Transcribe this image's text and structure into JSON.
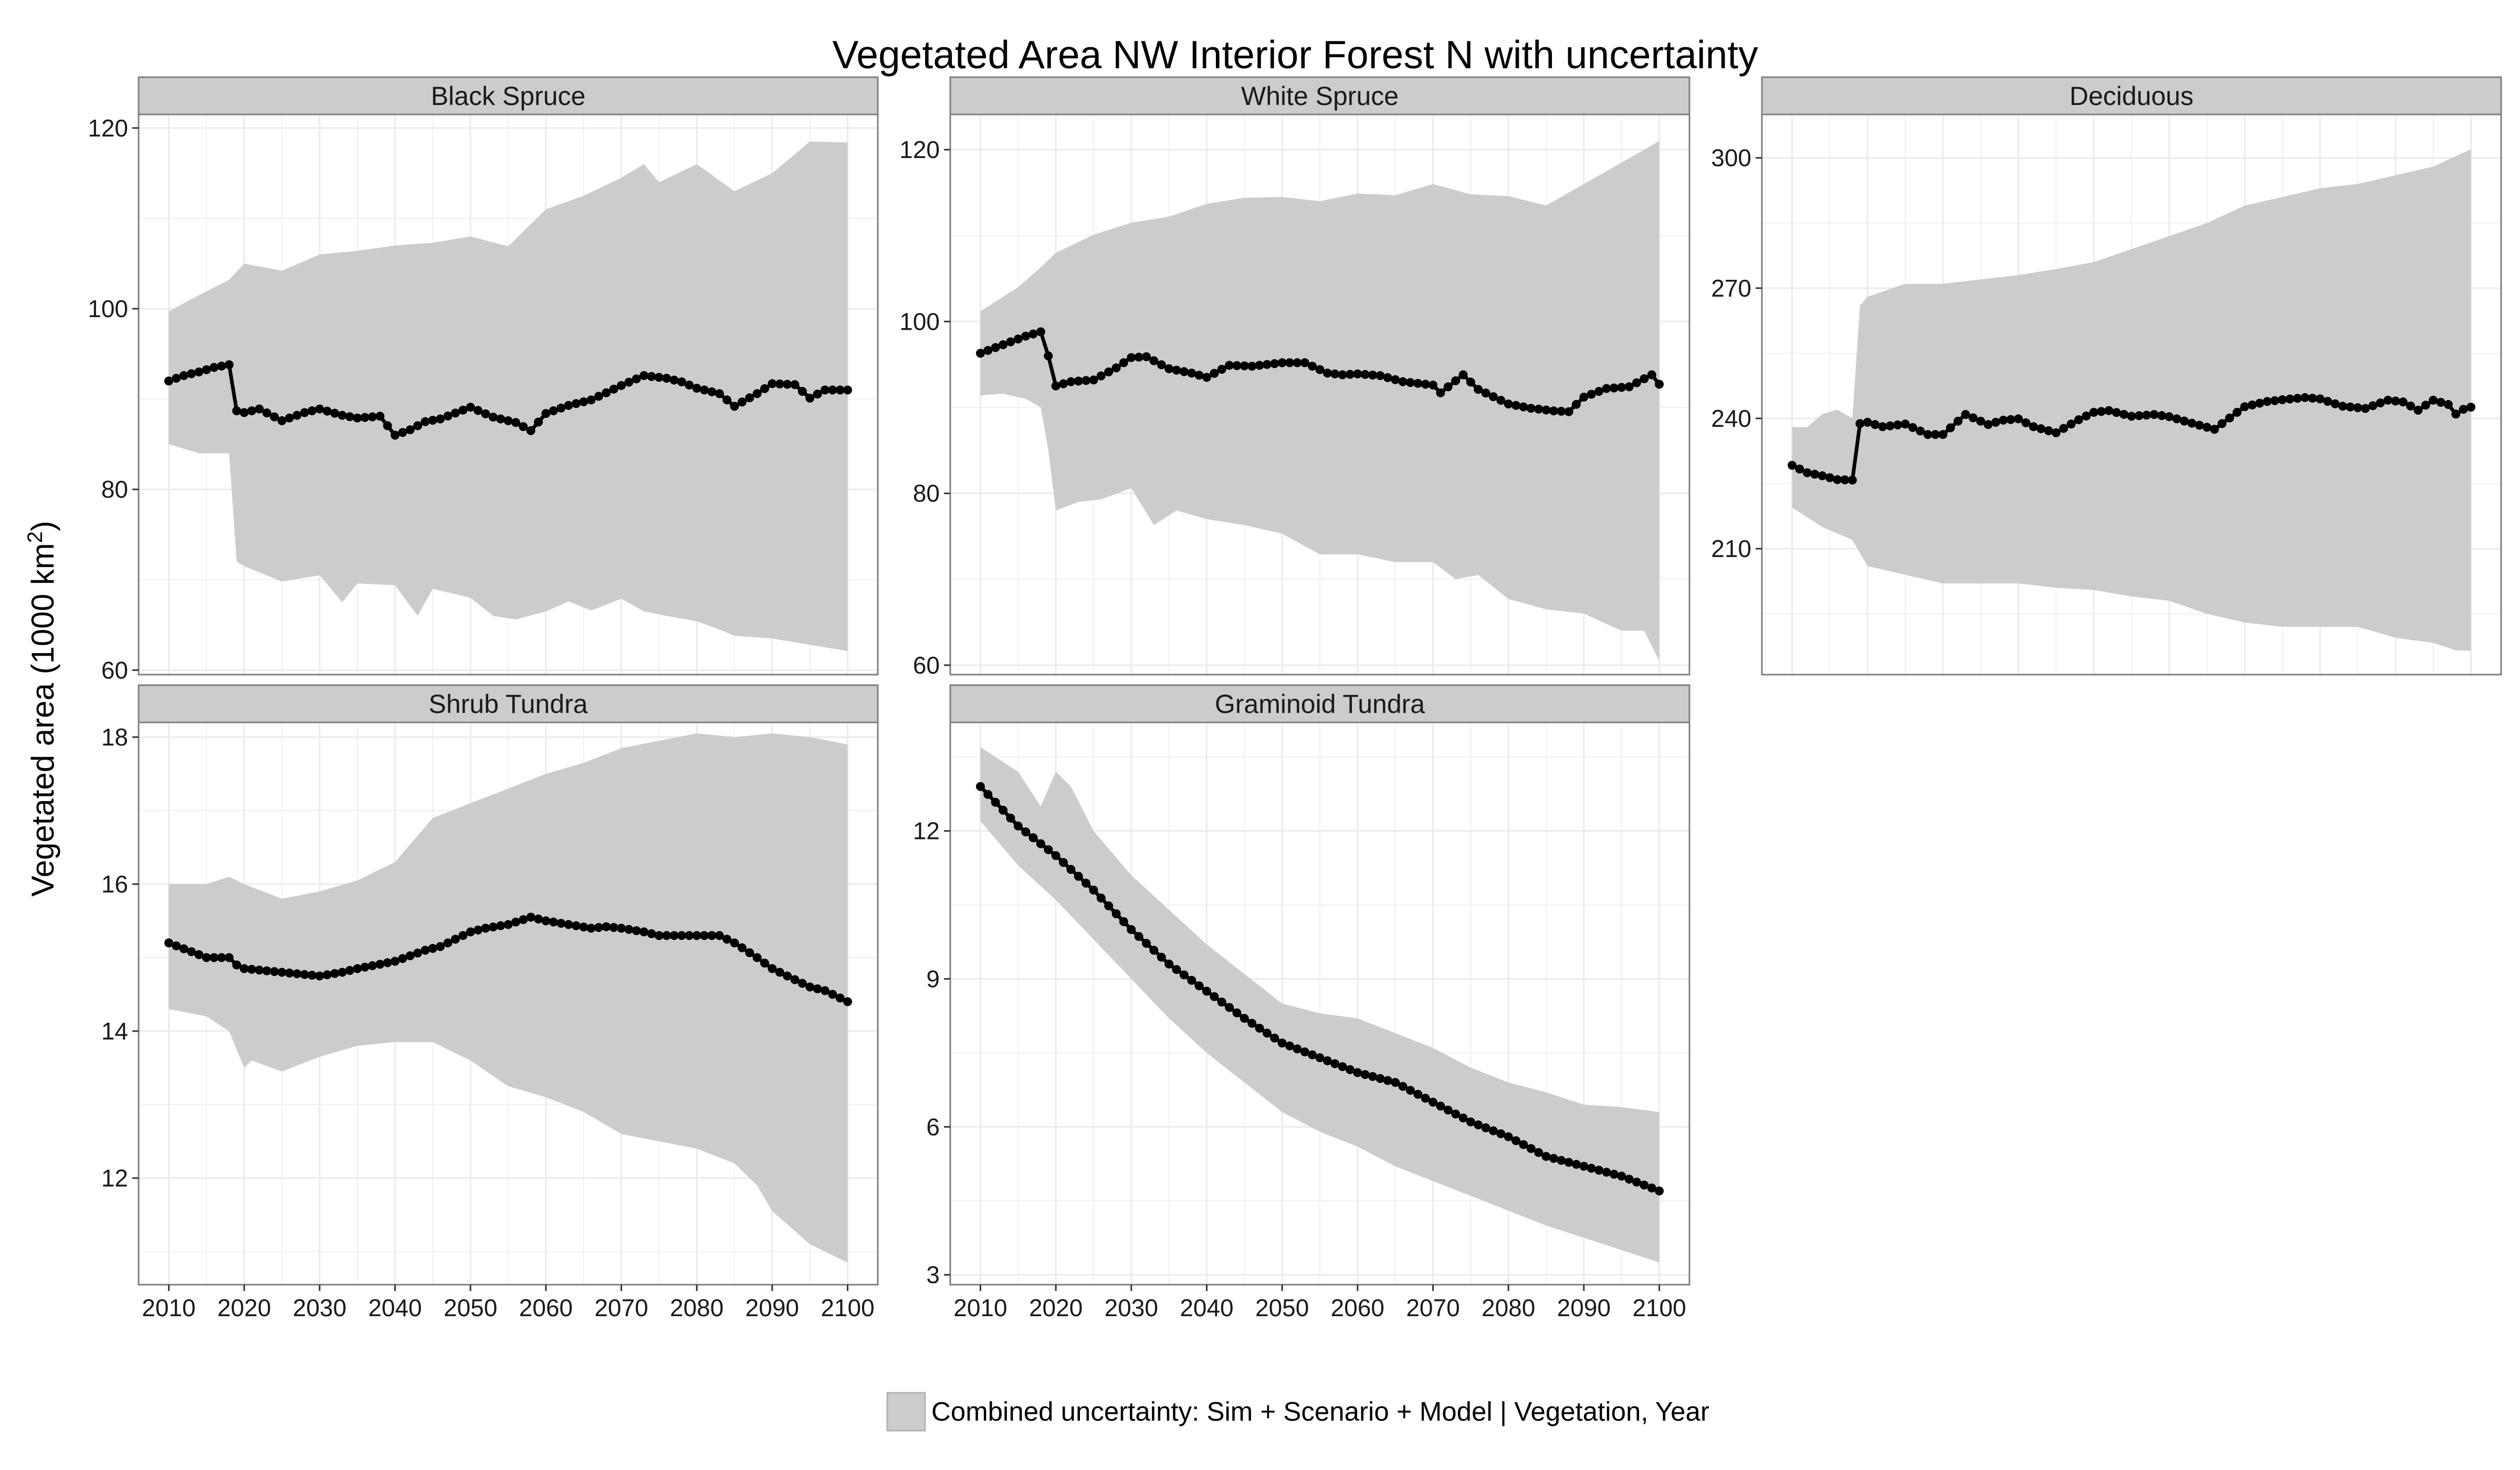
{
  "chart_data": {
    "type": "line",
    "title": "Vegetated Area NW Interior Forest N with uncertainty",
    "ylabel": "Vegetated area (1000 km²)",
    "ylabel_main": "Vegetated area (1000 km",
    "ylabel_sup": "2",
    "ylabel_close": ")",
    "xlabel": "",
    "x_ticks": [
      2010,
      2020,
      2030,
      2040,
      2050,
      2060,
      2070,
      2080,
      2090,
      2100
    ],
    "xlim": [
      2006,
      2104
    ],
    "grid": true,
    "legend": {
      "position": "bottom",
      "label": "Combined uncertainty: Sim + Scenario + Model | Vegetation, Year",
      "fill": "#cccccc"
    },
    "colors": {
      "band": "#cccccc",
      "line": "#000000",
      "strip": "#cccccc",
      "grid": "#ebebeb"
    },
    "panels": [
      {
        "name": "Black Spruce",
        "ylim": [
          59.5,
          121.5
        ],
        "y_ticks": [
          60,
          80,
          100,
          120
        ],
        "mean": {
          "x": [
            2010,
            2012,
            2014,
            2016,
            2018,
            2019,
            2020,
            2022,
            2025,
            2028,
            2030,
            2033,
            2035,
            2038,
            2040,
            2042,
            2044,
            2046,
            2050,
            2053,
            2056,
            2058,
            2060,
            2063,
            2066,
            2070,
            2073,
            2076,
            2078,
            2080,
            2083,
            2085,
            2088,
            2090,
            2093,
            2095,
            2097,
            2100
          ],
          "y": [
            92,
            92.6,
            93,
            93.5,
            93.8,
            88.7,
            88.5,
            88.9,
            87.6,
            88.5,
            88.9,
            88.2,
            87.9,
            88.1,
            86,
            86.6,
            87.5,
            87.8,
            89.1,
            88,
            87.4,
            86.5,
            88.4,
            89.3,
            89.9,
            91.5,
            92.6,
            92.3,
            91.9,
            91.2,
            90.6,
            89.2,
            90.6,
            91.7,
            91.6,
            90.1,
            91,
            91
          ]
        },
        "upper": {
          "x": [
            2010,
            2014,
            2018,
            2020,
            2025,
            2030,
            2035,
            2040,
            2045,
            2050,
            2055,
            2060,
            2065,
            2070,
            2073,
            2075,
            2080,
            2085,
            2090,
            2095,
            2100
          ],
          "y": [
            99.7,
            101.5,
            103.2,
            105,
            104.2,
            106,
            106.4,
            107,
            107.3,
            108,
            106.9,
            111,
            112.5,
            114.5,
            116,
            114,
            116,
            113,
            115,
            118.5,
            118.4
          ]
        },
        "lower": {
          "x": [
            2010,
            2014,
            2018,
            2019,
            2020,
            2025,
            2030,
            2033,
            2035,
            2040,
            2043,
            2045,
            2050,
            2053,
            2056,
            2060,
            2063,
            2066,
            2070,
            2073,
            2076,
            2080,
            2083,
            2085,
            2090,
            2095,
            2100
          ],
          "y": [
            85,
            84,
            84,
            72,
            71.5,
            69.8,
            70.5,
            67.5,
            69.6,
            69.4,
            66,
            69,
            68,
            66,
            65.6,
            66.5,
            67.6,
            66.6,
            67.9,
            66.5,
            66,
            65.4,
            64.5,
            63.8,
            63.5,
            62.8,
            62.1
          ]
        }
      },
      {
        "name": "White Spruce",
        "ylim": [
          58.9,
          124.1
        ],
        "y_ticks": [
          60,
          80,
          100,
          120
        ],
        "mean": {
          "x": [
            2010,
            2013,
            2016,
            2018,
            2019,
            2020,
            2022,
            2025,
            2028,
            2030,
            2032,
            2035,
            2038,
            2040,
            2043,
            2046,
            2050,
            2053,
            2056,
            2058,
            2060,
            2063,
            2066,
            2070,
            2071,
            2074,
            2076,
            2080,
            2083,
            2086,
            2088,
            2090,
            2093,
            2096,
            2099,
            2100
          ],
          "y": [
            96.3,
            97.3,
            98.3,
            98.8,
            96,
            92.5,
            93,
            93.2,
            94.6,
            95.8,
            95.9,
            94.5,
            94,
            93.5,
            94.9,
            94.8,
            95.2,
            95.2,
            94,
            93.8,
            93.9,
            93.7,
            93,
            92.6,
            91.7,
            93.8,
            92.1,
            90.4,
            89.9,
            89.6,
            89.5,
            91.2,
            92.2,
            92.4,
            93.8,
            92.7
          ]
        },
        "upper": {
          "x": [
            2010,
            2015,
            2018,
            2020,
            2025,
            2030,
            2035,
            2040,
            2045,
            2050,
            2055,
            2060,
            2065,
            2070,
            2075,
            2080,
            2085,
            2090,
            2095,
            2100
          ],
          "y": [
            101.2,
            104,
            106.3,
            108,
            110.1,
            111.5,
            112.2,
            113.7,
            114.4,
            114.5,
            114,
            114.9,
            114.7,
            116,
            114.8,
            114.6,
            113.5,
            116,
            118.5,
            121
          ]
        },
        "lower": {
          "x": [
            2010,
            2013,
            2016,
            2018,
            2019,
            2020,
            2023,
            2026,
            2030,
            2033,
            2036,
            2040,
            2045,
            2050,
            2055,
            2060,
            2065,
            2070,
            2073,
            2076,
            2080,
            2085,
            2090,
            2095,
            2098,
            2100
          ],
          "y": [
            91.4,
            91.6,
            91,
            90,
            85,
            78,
            79,
            79.3,
            80.6,
            76.3,
            78,
            77,
            76.3,
            75.3,
            72.9,
            72.9,
            72,
            72,
            70,
            70.5,
            67.7,
            66.5,
            66,
            64,
            64,
            60.5
          ]
        }
      },
      {
        "name": "Deciduous",
        "ylim": [
          181,
          310
        ],
        "y_ticks": [
          210,
          240,
          270,
          300
        ],
        "mean": {
          "x": [
            2010,
            2012,
            2014,
            2016,
            2018,
            2019,
            2020,
            2022,
            2025,
            2028,
            2030,
            2033,
            2036,
            2038,
            2040,
            2042,
            2045,
            2048,
            2050,
            2052,
            2055,
            2058,
            2060,
            2063,
            2066,
            2070,
            2073,
            2075,
            2078,
            2080,
            2083,
            2086,
            2089,
            2091,
            2093,
            2095,
            2097,
            2098,
            2099,
            2100
          ],
          "y": [
            229.2,
            227.5,
            226.8,
            225.9,
            225.8,
            238.8,
            239.1,
            238.1,
            238.7,
            236.3,
            236.3,
            240.9,
            238.6,
            239.6,
            239.9,
            238.1,
            236.7,
            239.7,
            241.4,
            241.8,
            240.5,
            240.9,
            240.4,
            238.9,
            237.5,
            242.7,
            243.9,
            244.3,
            244.8,
            244.5,
            242.8,
            242.3,
            244.2,
            243.8,
            241.9,
            244.2,
            243.2,
            241,
            242.1,
            242.6
          ]
        },
        "upper": {
          "x": [
            2010,
            2012,
            2014,
            2016,
            2018,
            2019,
            2020,
            2025,
            2030,
            2035,
            2040,
            2045,
            2050,
            2055,
            2060,
            2065,
            2070,
            2075,
            2080,
            2085,
            2090,
            2095,
            2100
          ],
          "y": [
            238,
            238,
            241,
            242,
            240,
            266,
            268,
            271,
            271,
            272,
            273,
            274.4,
            276,
            279,
            282,
            285,
            289,
            291,
            293,
            294,
            296,
            298,
            302
          ]
        },
        "lower": {
          "x": [
            2010,
            2014,
            2018,
            2020,
            2025,
            2030,
            2035,
            2040,
            2045,
            2050,
            2055,
            2060,
            2065,
            2070,
            2075,
            2080,
            2085,
            2090,
            2095,
            2098,
            2100
          ],
          "y": [
            219.5,
            215,
            212,
            206,
            204,
            202,
            202,
            202,
            201,
            200.5,
            199,
            198,
            195,
            193,
            192,
            192,
            192,
            189.5,
            188.3,
            186.6,
            186.5
          ]
        }
      },
      {
        "name": "Shrub Tundra",
        "ylim": [
          10.55,
          18.2
        ],
        "y_ticks": [
          12,
          14,
          16,
          18
        ],
        "mean": {
          "x": [
            2010,
            2015,
            2018,
            2019,
            2020,
            2025,
            2030,
            2033,
            2035,
            2040,
            2044,
            2046,
            2048,
            2050,
            2052,
            2055,
            2058,
            2060,
            2063,
            2066,
            2068,
            2070,
            2073,
            2075,
            2078,
            2080,
            2083,
            2085,
            2088,
            2090,
            2093,
            2095,
            2097,
            2100
          ],
          "y": [
            15.2,
            15,
            15,
            14.9,
            14.85,
            14.8,
            14.75,
            14.8,
            14.85,
            14.95,
            15.1,
            15.15,
            15.25,
            15.35,
            15.4,
            15.45,
            15.55,
            15.5,
            15.45,
            15.4,
            15.42,
            15.4,
            15.35,
            15.3,
            15.3,
            15.3,
            15.3,
            15.2,
            15,
            14.85,
            14.7,
            14.6,
            14.55,
            14.4
          ]
        },
        "upper": {
          "x": [
            2010,
            2015,
            2018,
            2020,
            2025,
            2030,
            2035,
            2040,
            2045,
            2050,
            2055,
            2060,
            2065,
            2070,
            2075,
            2080,
            2085,
            2090,
            2095,
            2100
          ],
          "y": [
            16,
            16,
            16.1,
            16,
            15.8,
            15.9,
            16.05,
            16.3,
            16.9,
            17.1,
            17.3,
            17.5,
            17.65,
            17.85,
            17.95,
            18.05,
            18,
            18.05,
            18,
            17.9
          ]
        },
        "lower": {
          "x": [
            2010,
            2015,
            2018,
            2020,
            2021,
            2025,
            2030,
            2035,
            2040,
            2045,
            2050,
            2055,
            2060,
            2065,
            2070,
            2075,
            2080,
            2085,
            2088,
            2090,
            2095,
            2100
          ],
          "y": [
            14.3,
            14.2,
            14,
            13.5,
            13.6,
            13.45,
            13.65,
            13.8,
            13.85,
            13.85,
            13.6,
            13.25,
            13.1,
            12.9,
            12.6,
            12.5,
            12.4,
            12.2,
            11.9,
            11.55,
            11.1,
            10.85
          ]
        }
      },
      {
        "name": "Graminoid Tundra",
        "ylim": [
          2.8,
          14.2
        ],
        "y_ticks": [
          3,
          6,
          9,
          12
        ],
        "mean": {
          "x": [
            2010,
            2015,
            2020,
            2025,
            2030,
            2035,
            2040,
            2045,
            2050,
            2055,
            2060,
            2065,
            2070,
            2075,
            2080,
            2085,
            2090,
            2095,
            2100
          ],
          "y": [
            12.9,
            12.1,
            11.5,
            10.8,
            10,
            9.3,
            8.75,
            8.2,
            7.7,
            7.4,
            7.1,
            6.9,
            6.5,
            6.1,
            5.8,
            5.4,
            5.2,
            5,
            4.7
          ]
        },
        "upper": {
          "x": [
            2010,
            2015,
            2018,
            2020,
            2022,
            2025,
            2030,
            2035,
            2040,
            2045,
            2050,
            2055,
            2060,
            2065,
            2070,
            2075,
            2080,
            2085,
            2090,
            2095,
            2100
          ],
          "y": [
            13.7,
            13.2,
            12.5,
            13.2,
            12.9,
            12,
            11.1,
            10.4,
            9.7,
            9.1,
            8.5,
            8.3,
            8.2,
            7.9,
            7.6,
            7.2,
            6.9,
            6.7,
            6.45,
            6.4,
            6.3
          ]
        },
        "lower": {
          "x": [
            2010,
            2015,
            2020,
            2025,
            2030,
            2035,
            2040,
            2045,
            2050,
            2055,
            2060,
            2065,
            2070,
            2075,
            2080,
            2085,
            2090,
            2095,
            2100
          ],
          "y": [
            12.2,
            11.3,
            10.6,
            9.8,
            9,
            8.2,
            7.5,
            6.9,
            6.3,
            5.9,
            5.6,
            5.2,
            4.9,
            4.6,
            4.3,
            4,
            3.75,
            3.5,
            3.25
          ]
        }
      }
    ]
  }
}
